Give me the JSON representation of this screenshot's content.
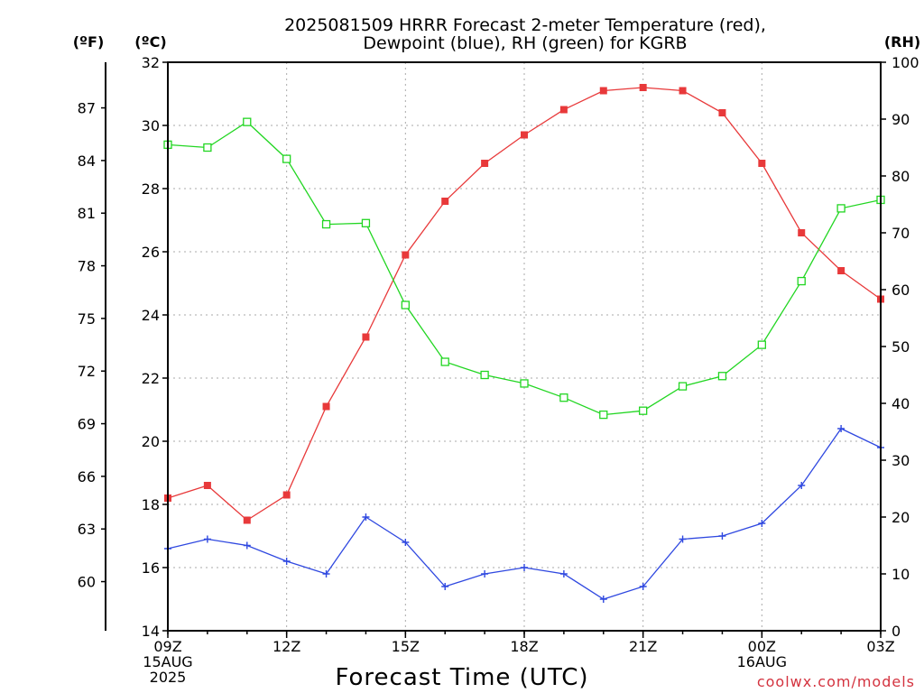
{
  "chart_data": {
    "type": "line",
    "title_lines": [
      "2025081509 HRRR Forecast 2-meter Temperature (red),",
      "Dewpoint (blue), RH (green) for KGRB"
    ],
    "xlabel": "Forecast Time (UTC)",
    "credit": "coolwx.com/models",
    "units": {
      "fahrenheit": "(ºF)",
      "celsius": "(ºC)",
      "rh": "(RH)"
    },
    "x_count": 19,
    "x_ticks": [
      {
        "i": 0,
        "lines": [
          "09Z",
          "15AUG",
          "2025"
        ]
      },
      {
        "i": 3,
        "lines": [
          "12Z"
        ]
      },
      {
        "i": 6,
        "lines": [
          "15Z"
        ]
      },
      {
        "i": 9,
        "lines": [
          "18Z"
        ]
      },
      {
        "i": 12,
        "lines": [
          "21Z"
        ]
      },
      {
        "i": 15,
        "lines": [
          "00Z",
          "16AUG"
        ]
      },
      {
        "i": 18,
        "lines": [
          "03Z"
        ]
      }
    ],
    "y_left": {
      "label": "(ºC)",
      "min": 14,
      "max": 32,
      "ticks": [
        14,
        16,
        18,
        20,
        22,
        24,
        26,
        28,
        30,
        32
      ]
    },
    "y_fahrenheit": {
      "label": "(ºF)",
      "ticks": [
        60,
        63,
        66,
        69,
        72,
        75,
        78,
        81,
        84,
        87
      ]
    },
    "y_right": {
      "label": "(RH)",
      "min": 0,
      "max": 100,
      "ticks": [
        0,
        10,
        20,
        30,
        40,
        50,
        60,
        70,
        80,
        90,
        100
      ]
    },
    "grid": true,
    "series": [
      {
        "name": "Temperature",
        "axis": "left",
        "color": "#e8393a",
        "marker": "filled-square",
        "values": [
          18.2,
          18.6,
          17.5,
          18.3,
          21.1,
          23.3,
          25.9,
          27.6,
          28.8,
          29.7,
          30.5,
          31.1,
          31.2,
          31.1,
          30.4,
          28.8,
          26.6,
          25.4,
          24.5
        ]
      },
      {
        "name": "Dewpoint",
        "axis": "left",
        "color": "#2f48e0",
        "marker": "plus",
        "values": [
          16.6,
          16.9,
          16.7,
          16.2,
          15.8,
          17.6,
          16.8,
          15.4,
          15.8,
          16.0,
          15.8,
          15.0,
          15.4,
          16.9,
          17.0,
          17.4,
          18.6,
          20.4,
          19.8
        ]
      },
      {
        "name": "RH",
        "axis": "right",
        "color": "#22d622",
        "marker": "open-square",
        "values": [
          85.5,
          85.0,
          89.5,
          83.0,
          71.5,
          71.7,
          57.3,
          47.3,
          45.0,
          43.5,
          41.0,
          38.0,
          38.7,
          43.0,
          44.8,
          50.3,
          61.5,
          74.3,
          75.8
        ]
      }
    ]
  }
}
